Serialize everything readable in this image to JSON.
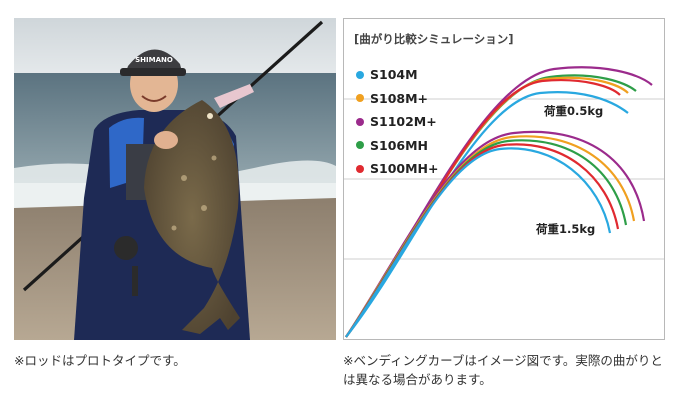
{
  "photo": {
    "cap_logo": "SHIMANO"
  },
  "captions": {
    "left": "※ロッドはプロトタイプです。",
    "right": "※ベンディングカーブはイメージ図です。実際の曲がりとは異なる場合があります。"
  },
  "chart": {
    "title": "[曲がり比較シミュレーション]",
    "legend": [
      {
        "name": "S104M",
        "color": "#29a8e0"
      },
      {
        "name": "S108M+",
        "color": "#f0a020"
      },
      {
        "name": "S1102M+",
        "color": "#9b2b8c"
      },
      {
        "name": "S106MH",
        "color": "#2e9e48"
      },
      {
        "name": "S100MH+",
        "color": "#e02a30"
      }
    ],
    "load_labels": {
      "light": "荷重0.5kg",
      "heavy": "荷重1.5kg"
    }
  }
}
